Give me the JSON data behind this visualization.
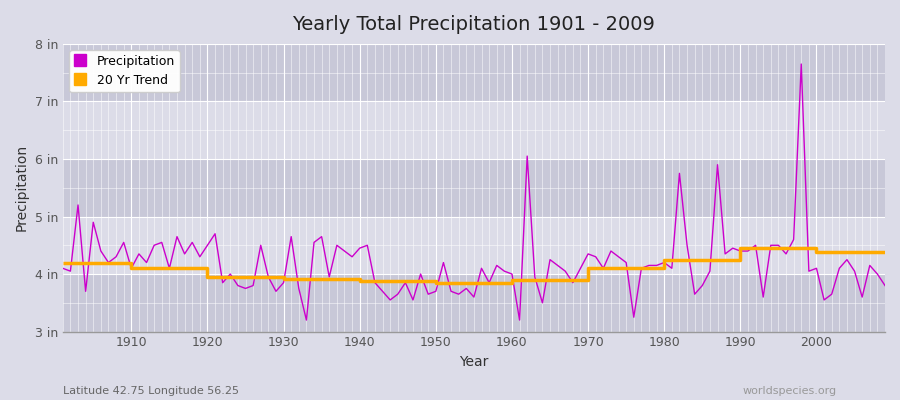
{
  "title": "Yearly Total Precipitation 1901 - 2009",
  "xlabel": "Year",
  "ylabel": "Precipitation",
  "subtitle_lat": "Latitude 42.75 Longitude 56.25",
  "watermark": "worldspecies.org",
  "bg_color": "#dcdce8",
  "plot_bg_color": "#dcdce8",
  "band_color_light": "#d0d0de",
  "precip_color": "#cc00cc",
  "trend_color": "#ffaa00",
  "ylim": [
    3.0,
    8.0
  ],
  "yticks": [
    3,
    4,
    5,
    6,
    7,
    8
  ],
  "ytick_labels": [
    "3 in",
    "4 in",
    "5 in",
    "6 in",
    "7 in",
    "8 in"
  ],
  "years": [
    1901,
    1902,
    1903,
    1904,
    1905,
    1906,
    1907,
    1908,
    1909,
    1910,
    1911,
    1912,
    1913,
    1914,
    1915,
    1916,
    1917,
    1918,
    1919,
    1920,
    1921,
    1922,
    1923,
    1924,
    1925,
    1926,
    1927,
    1928,
    1929,
    1930,
    1931,
    1932,
    1933,
    1934,
    1935,
    1936,
    1937,
    1938,
    1939,
    1940,
    1941,
    1942,
    1943,
    1944,
    1945,
    1946,
    1947,
    1948,
    1949,
    1950,
    1951,
    1952,
    1953,
    1954,
    1955,
    1956,
    1957,
    1958,
    1959,
    1960,
    1961,
    1962,
    1963,
    1964,
    1965,
    1966,
    1967,
    1968,
    1969,
    1970,
    1971,
    1972,
    1973,
    1974,
    1975,
    1976,
    1977,
    1978,
    1979,
    1980,
    1981,
    1982,
    1983,
    1984,
    1985,
    1986,
    1987,
    1988,
    1989,
    1990,
    1991,
    1992,
    1993,
    1994,
    1995,
    1996,
    1997,
    1998,
    1999,
    2000,
    2001,
    2002,
    2003,
    2004,
    2005,
    2006,
    2007,
    2008,
    2009
  ],
  "precip": [
    4.1,
    4.05,
    5.2,
    3.7,
    4.9,
    4.4,
    4.2,
    4.3,
    4.55,
    4.1,
    4.35,
    4.2,
    4.5,
    4.55,
    4.1,
    4.65,
    4.35,
    4.55,
    4.3,
    4.5,
    4.7,
    3.85,
    4.0,
    3.8,
    3.75,
    3.8,
    4.5,
    3.95,
    3.7,
    3.85,
    4.65,
    3.75,
    3.2,
    4.55,
    4.65,
    3.95,
    4.5,
    4.4,
    4.3,
    4.45,
    4.5,
    3.85,
    3.7,
    3.55,
    3.65,
    3.85,
    3.55,
    4.0,
    3.65,
    3.7,
    4.2,
    3.7,
    3.65,
    3.75,
    3.6,
    4.1,
    3.85,
    4.15,
    4.05,
    4.0,
    3.2,
    6.05,
    3.95,
    3.5,
    4.25,
    4.15,
    4.05,
    3.85,
    4.1,
    4.35,
    4.3,
    4.1,
    4.4,
    4.3,
    4.2,
    3.25,
    4.1,
    4.15,
    4.15,
    4.2,
    4.1,
    5.75,
    4.5,
    3.65,
    3.8,
    4.05,
    5.9,
    4.35,
    4.45,
    4.4,
    4.4,
    4.5,
    3.6,
    4.5,
    4.5,
    4.35,
    4.6,
    7.65,
    4.05,
    4.1,
    3.55,
    3.65,
    4.1,
    4.25,
    4.05,
    3.6,
    4.15,
    4.0,
    3.8
  ],
  "trend_years": [
    1901,
    1910,
    1910,
    1920,
    1920,
    1930,
    1930,
    1940,
    1940,
    1950,
    1950,
    1960,
    1960,
    1970,
    1970,
    1980,
    1980,
    1990,
    1990,
    2000,
    2000,
    2009
  ],
  "trend_values": [
    4.2,
    4.2,
    4.1,
    4.1,
    3.95,
    3.95,
    3.92,
    3.92,
    3.88,
    3.88,
    3.84,
    3.84,
    3.9,
    3.9,
    4.1,
    4.1,
    4.25,
    4.25,
    4.45,
    4.45,
    4.38,
    4.38
  ],
  "xticks": [
    1910,
    1920,
    1930,
    1940,
    1950,
    1960,
    1970,
    1980,
    1990,
    2000
  ],
  "legend_items": [
    "Precipitation",
    "20 Yr Trend"
  ],
  "legend_colors": [
    "#cc00cc",
    "#ffaa00"
  ]
}
